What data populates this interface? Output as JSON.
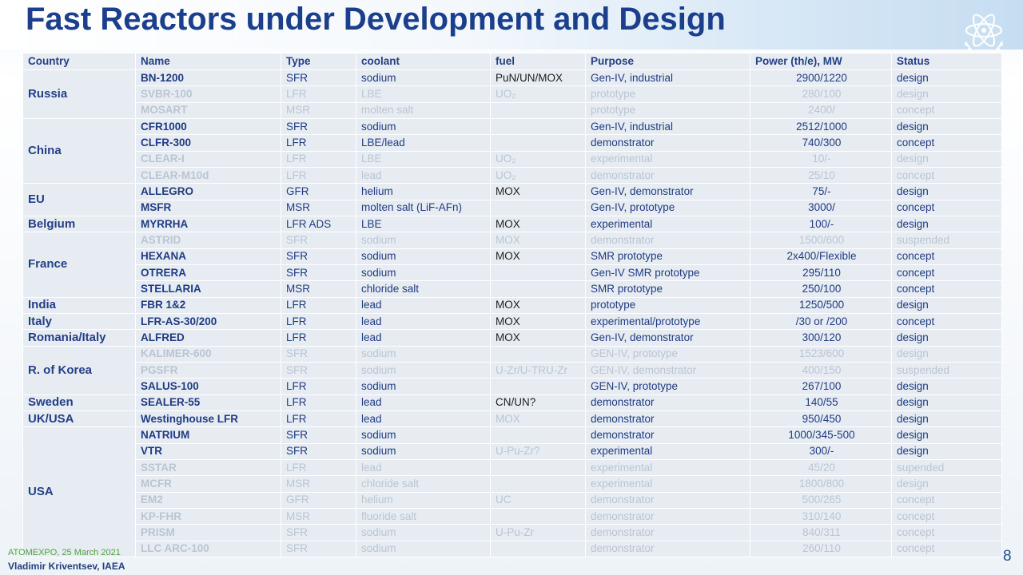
{
  "slide": {
    "title": "Fast Reactors under Development and Design",
    "footer_conference": "ATOMEXPO, 25 March 2021",
    "footer_author": "Vladimir Kriventsev, IAEA",
    "page_number": "8"
  },
  "table": {
    "headers": {
      "country": "Country",
      "name": "Name",
      "type": "Type",
      "coolant": "coolant",
      "fuel": "fuel",
      "purpose": "Purpose",
      "power": "Power (th/e), MW",
      "status": "Status"
    },
    "countries": {
      "russia": "Russia",
      "china": "China",
      "eu": "EU",
      "belgium": "Belgium",
      "france": "France",
      "india": "India",
      "italy": "Italy",
      "romania_italy": "Romania/Italy",
      "korea": "R. of Korea",
      "sweden": "Sweden",
      "uk_usa": "UK/USA",
      "usa": "USA"
    },
    "rows": [
      {
        "name": "BN-1200",
        "type": "SFR",
        "coolant": "sodium",
        "fuel": "PuN/UN/MOX",
        "purpose": "Gen-IV, industrial",
        "power": "2900/1220",
        "status": "design",
        "emphasis": "high"
      },
      {
        "name": "SVBR-100",
        "type": "LFR",
        "coolant": "LBE",
        "fuel": "UO₂",
        "purpose": "prototype",
        "power": "280/100",
        "status": "design",
        "emphasis": "low"
      },
      {
        "name": "MOSART",
        "type": "MSR",
        "coolant": "molten salt",
        "fuel": "",
        "purpose": "prototype",
        "power": "2400/",
        "status": "concept",
        "emphasis": "low"
      },
      {
        "name": "CFR1000",
        "type": "SFR",
        "coolant": "sodium",
        "fuel": "",
        "purpose": "Gen-IV, industrial",
        "power": "2512/1000",
        "status": "design",
        "emphasis": "high"
      },
      {
        "name": "CLFR-300",
        "type": "LFR",
        "coolant": "LBE/lead",
        "fuel": "",
        "purpose": "demonstrator",
        "power": "740/300",
        "status": "concept",
        "emphasis": "high"
      },
      {
        "name": "CLEAR-I",
        "type": "LFR",
        "coolant": "LBE",
        "fuel": "UO₂",
        "purpose": "experimental",
        "power": "10/-",
        "status": "design",
        "emphasis": "low"
      },
      {
        "name": "CLEAR-M10d",
        "type": "LFR",
        "coolant": "lead",
        "fuel": "UO₂",
        "purpose": "demonstrator",
        "power": "25/10",
        "status": "concept",
        "emphasis": "low"
      },
      {
        "name": "ALLEGRO",
        "type": "GFR",
        "coolant": "helium",
        "fuel": "MOX",
        "purpose": "Gen-IV, demonstrator",
        "power": "75/-",
        "status": "design",
        "emphasis": "high"
      },
      {
        "name": "MSFR",
        "type": "MSR",
        "coolant": "molten salt (LiF-AFn)",
        "fuel": "",
        "purpose": "Gen-IV, prototype",
        "power": "3000/",
        "status": "concept",
        "emphasis": "high"
      },
      {
        "name": "MYRRHA",
        "type": "LFR ADS",
        "coolant": "LBE",
        "fuel": "MOX",
        "purpose": "experimental",
        "power": "100/-",
        "status": "design",
        "emphasis": "high"
      },
      {
        "name": "ASTRID",
        "type": "SFR",
        "coolant": "sodium",
        "fuel": "MOX",
        "purpose": "demonstrator",
        "power": "1500/600",
        "status": "suspended",
        "emphasis": "low"
      },
      {
        "name": "HEXANA",
        "type": "SFR",
        "coolant": "sodium",
        "fuel": "MOX",
        "purpose": "SMR prototype",
        "power": "2x400/Flexible",
        "status": "concept",
        "emphasis": "high"
      },
      {
        "name": "OTRERA",
        "type": "SFR",
        "coolant": "sodium",
        "fuel": "",
        "purpose": "Gen-IV SMR prototype",
        "power": "295/110",
        "status": "concept",
        "emphasis": "high"
      },
      {
        "name": "STELLARIA",
        "type": "MSR",
        "coolant": "chloride salt",
        "fuel": "",
        "purpose": "SMR prototype",
        "power": "250/100",
        "status": "concept",
        "emphasis": "high"
      },
      {
        "name": "FBR 1&2",
        "type": "LFR",
        "coolant": "lead",
        "fuel": "MOX",
        "purpose": "prototype",
        "power": "1250/500",
        "status": "design",
        "emphasis": "high"
      },
      {
        "name": "LFR-AS-30/200",
        "type": "LFR",
        "coolant": "lead",
        "fuel": "MOX",
        "purpose": "experimental/prototype",
        "power": "/30 or /200",
        "status": "concept",
        "emphasis": "high"
      },
      {
        "name": "ALFRED",
        "type": "LFR",
        "coolant": "lead",
        "fuel": "MOX",
        "purpose": "Gen-IV, demonstrator",
        "power": "300/120",
        "status": "design",
        "emphasis": "high"
      },
      {
        "name": "KALIMER-600",
        "type": "SFR",
        "coolant": "sodium",
        "fuel": "",
        "purpose": "GEN-IV, prototype",
        "power": "1523/600",
        "status": "design",
        "emphasis": "low"
      },
      {
        "name": "PGSFR",
        "type": "SFR",
        "coolant": "sodium",
        "fuel": "U-Zr/U-TRU-Zr",
        "purpose": "GEN-IV, demonstrator",
        "power": "400/150",
        "status": "suspended",
        "emphasis": "low"
      },
      {
        "name": "SALUS-100",
        "type": "LFR",
        "coolant": "sodium",
        "fuel": "",
        "purpose": "GEN-IV, prototype",
        "power": "267/100",
        "status": "design",
        "emphasis": "high"
      },
      {
        "name": "SEALER-55",
        "type": "LFR",
        "coolant": "lead",
        "fuel": "CN/UN?",
        "purpose": "demonstrator",
        "power": "140/55",
        "status": "design",
        "emphasis": "high"
      },
      {
        "name": "Westinghouse LFR",
        "type": "LFR",
        "coolant": "lead",
        "fuel": "MOX",
        "fuel_dim": true,
        "purpose": "demonstrator",
        "power": "950/450",
        "status": "design",
        "emphasis": "high"
      },
      {
        "name": "NATRIUM",
        "type": "SFR",
        "coolant": "sodium",
        "fuel": "",
        "purpose": "demonstrator",
        "power": "1000/345-500",
        "status": "design",
        "emphasis": "high"
      },
      {
        "name": "VTR",
        "type": "SFR",
        "coolant": "sodium",
        "fuel": "U-Pu-Zr?",
        "fuel_dim": true,
        "purpose": "experimental",
        "power": "300/-",
        "status": "design",
        "emphasis": "high"
      },
      {
        "name": "SSTAR",
        "type": "LFR",
        "coolant": "lead",
        "fuel": "",
        "purpose": "experimental",
        "power": "45/20",
        "status": "supended",
        "emphasis": "low"
      },
      {
        "name": "MCFR",
        "type": "MSR",
        "coolant": "chloride salt",
        "fuel": "",
        "purpose": "experimental",
        "power": "1800/800",
        "status": "design",
        "emphasis": "low"
      },
      {
        "name": "EM2",
        "type": "GFR",
        "coolant": "helium",
        "fuel": "UC",
        "purpose": "demonstrator",
        "power": "500/265",
        "status": "concept",
        "emphasis": "low"
      },
      {
        "name": "KP-FHR",
        "type": "MSR",
        "coolant": "fluoride salt",
        "fuel": "",
        "purpose": "demonstrator",
        "power": "310/140",
        "status": "concept",
        "emphasis": "low"
      },
      {
        "name": "PRISM",
        "type": "SFR",
        "coolant": "sodium",
        "fuel": "U-Pu-Zr",
        "purpose": "demonstrator",
        "power": "840/311",
        "status": "concept",
        "emphasis": "low"
      },
      {
        "name": "LLC ARC-100",
        "type": "SFR",
        "coolant": "sodium",
        "fuel": "",
        "purpose": "demonstrator",
        "power": "260/110",
        "status": "concept",
        "emphasis": "low"
      }
    ]
  },
  "colors": {
    "title": "#1b3f8c",
    "header_text": "#243f86",
    "row_text_emphasized": "#1f3b82",
    "row_text_faded": "#b9c5d3",
    "cell_background": "#e7ecf2"
  },
  "icons": {
    "logo": "atom-olive-branch-logo"
  }
}
